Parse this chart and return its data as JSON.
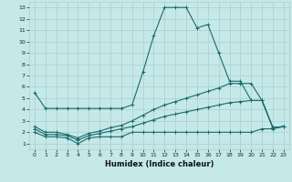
{
  "xlabel": "Humidex (Indice chaleur)",
  "xlim": [
    -0.5,
    23.5
  ],
  "ylim": [
    0.5,
    13.5
  ],
  "xticks": [
    0,
    1,
    2,
    3,
    4,
    5,
    6,
    7,
    8,
    9,
    10,
    11,
    12,
    13,
    14,
    15,
    16,
    17,
    18,
    19,
    20,
    21,
    22,
    23
  ],
  "yticks": [
    1,
    2,
    3,
    4,
    5,
    6,
    7,
    8,
    9,
    10,
    11,
    12,
    13
  ],
  "bg_color": "#c5e8e8",
  "grid_color": "#aacece",
  "line_color": "#1a6b6b",
  "lines": [
    {
      "x": [
        0,
        1,
        2,
        3,
        4,
        5,
        6,
        7,
        8,
        9,
        10,
        11,
        12,
        13,
        14,
        15,
        16,
        17,
        18,
        19,
        20,
        21,
        22,
        23
      ],
      "y": [
        5.5,
        4.1,
        4.1,
        4.1,
        4.1,
        4.1,
        4.1,
        4.1,
        4.1,
        4.4,
        7.3,
        10.5,
        13.0,
        13.0,
        13.0,
        11.2,
        11.5,
        9.0,
        6.5,
        6.5,
        4.8,
        4.8,
        2.4,
        2.5
      ]
    },
    {
      "x": [
        0,
        1,
        2,
        3,
        4,
        5,
        6,
        7,
        8,
        9,
        10,
        11,
        12,
        13,
        14,
        15,
        16,
        17,
        18,
        19,
        20,
        21,
        22,
        23
      ],
      "y": [
        2.0,
        1.6,
        1.6,
        1.5,
        1.0,
        1.5,
        1.6,
        1.6,
        1.6,
        2.0,
        2.0,
        2.0,
        2.0,
        2.0,
        2.0,
        2.0,
        2.0,
        2.0,
        2.0,
        2.0,
        2.0,
        2.3,
        2.3,
        2.5
      ]
    },
    {
      "x": [
        0,
        1,
        2,
        3,
        4,
        5,
        6,
        7,
        8,
        9,
        10,
        11,
        12,
        13,
        14,
        15,
        16,
        17,
        18,
        19,
        20,
        21,
        22,
        23
      ],
      "y": [
        2.3,
        1.8,
        1.8,
        1.7,
        1.3,
        1.7,
        1.9,
        2.1,
        2.3,
        2.5,
        2.8,
        3.1,
        3.4,
        3.6,
        3.8,
        4.0,
        4.2,
        4.4,
        4.6,
        4.7,
        4.8,
        4.8,
        2.4,
        2.5
      ]
    },
    {
      "x": [
        0,
        1,
        2,
        3,
        4,
        5,
        6,
        7,
        8,
        9,
        10,
        11,
        12,
        13,
        14,
        15,
        16,
        17,
        18,
        19,
        20,
        21,
        22,
        23
      ],
      "y": [
        2.5,
        2.0,
        2.0,
        1.8,
        1.5,
        1.9,
        2.1,
        2.4,
        2.6,
        3.0,
        3.5,
        4.0,
        4.4,
        4.7,
        5.0,
        5.3,
        5.6,
        5.9,
        6.3,
        6.3,
        6.3,
        4.8,
        2.4,
        2.5
      ]
    }
  ]
}
